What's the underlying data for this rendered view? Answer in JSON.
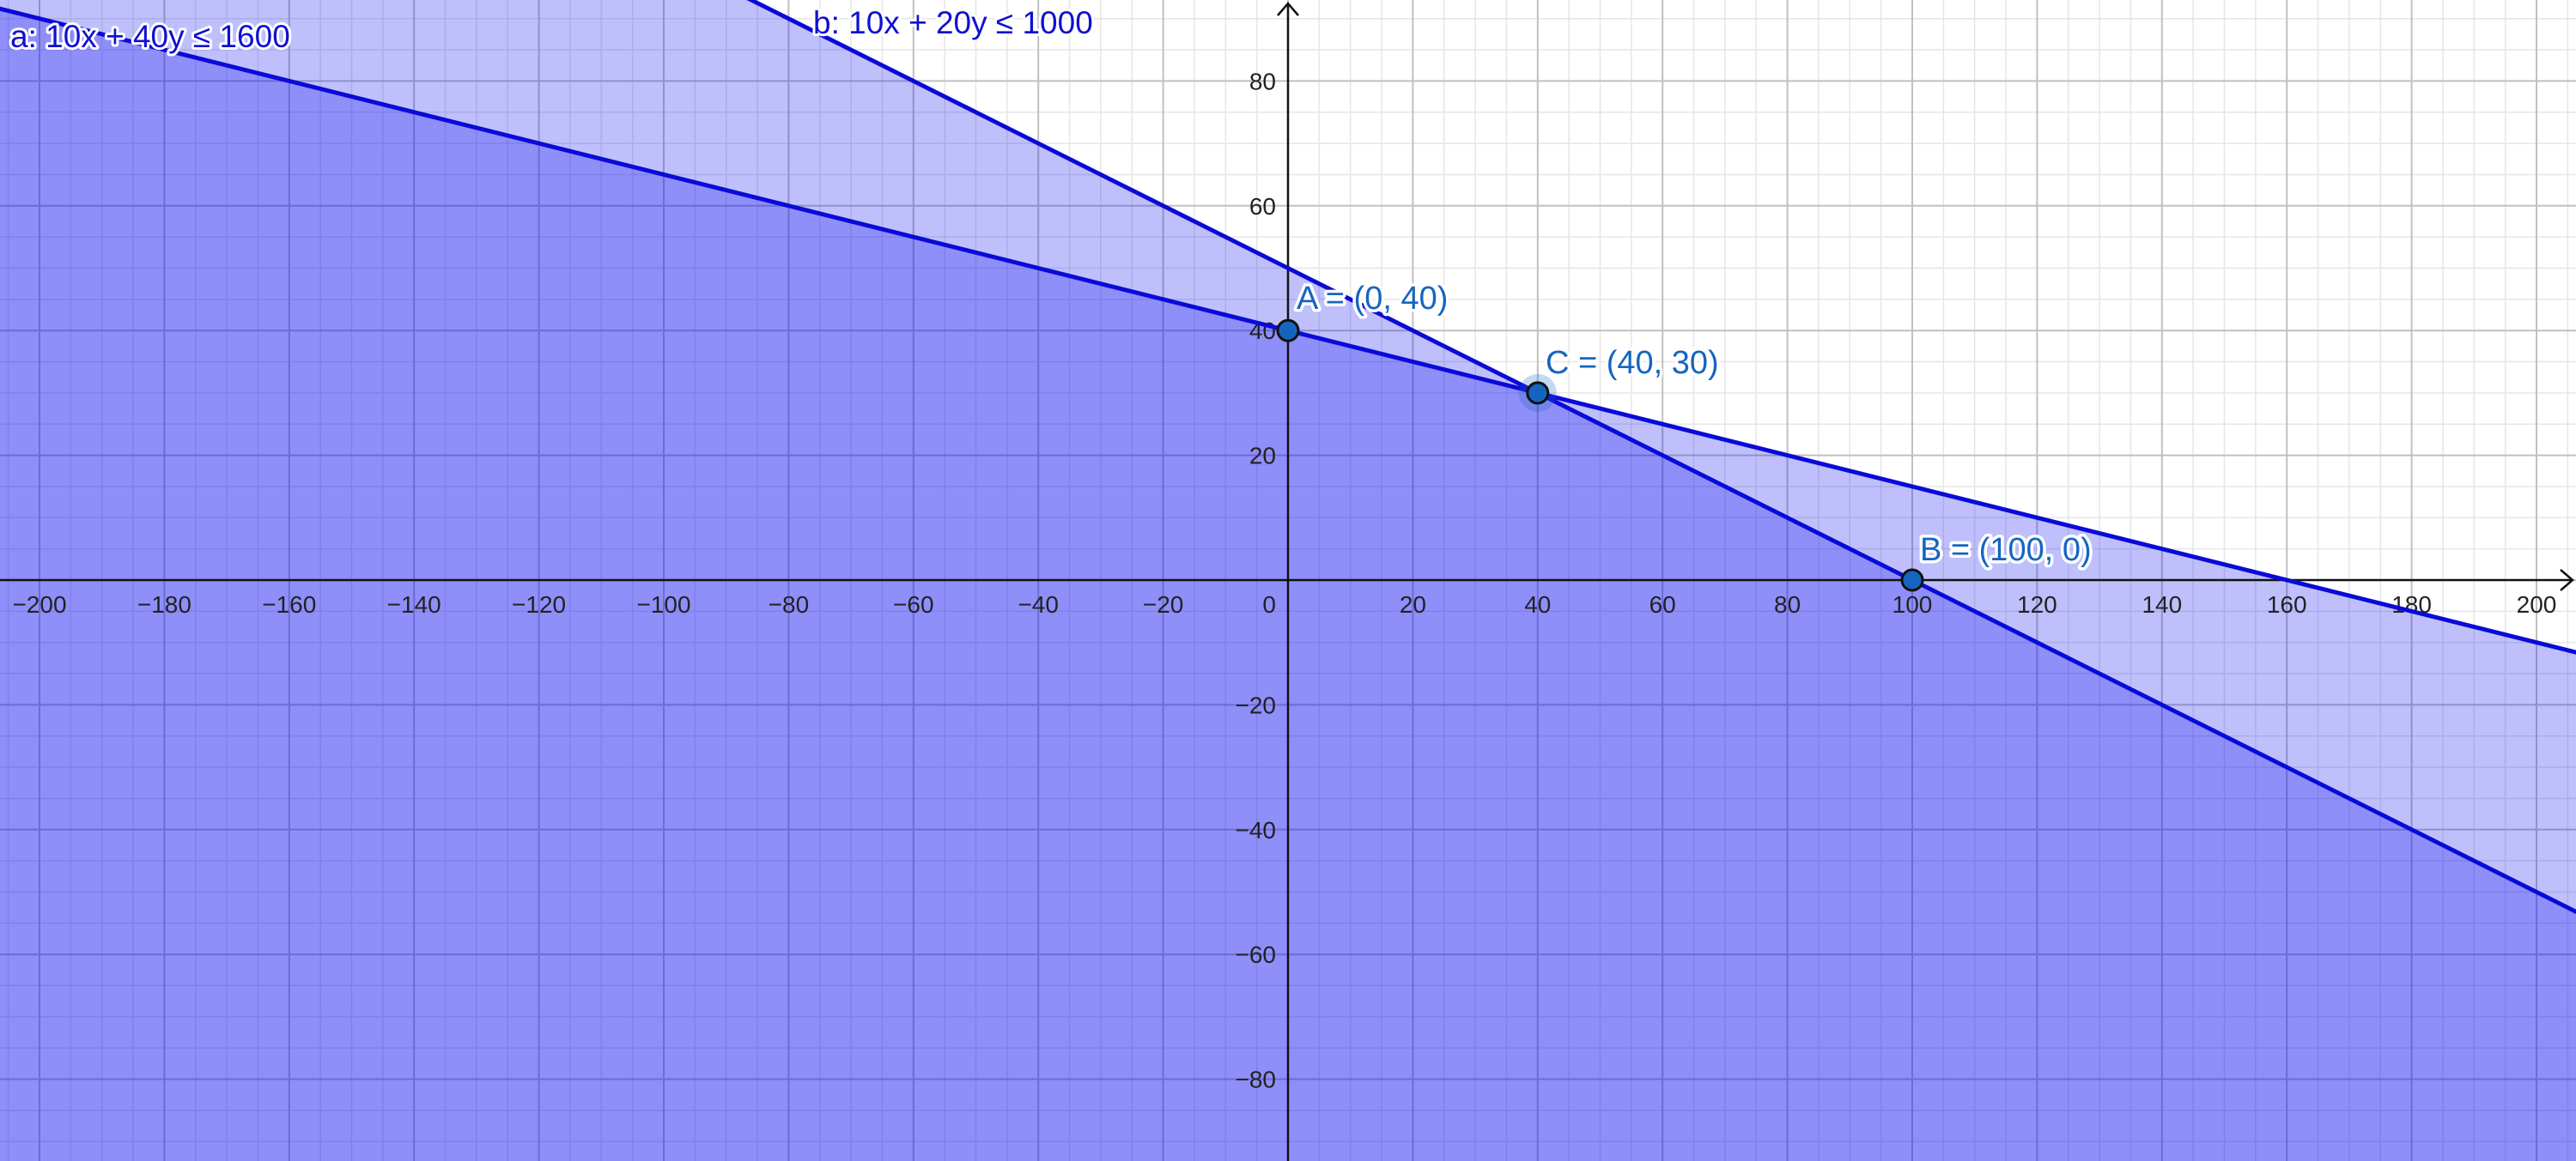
{
  "chart_data": {
    "type": "line",
    "title": "",
    "xlim": [
      -206,
      206
    ],
    "ylim": [
      -93,
      93
    ],
    "grid": true,
    "major_tick_step": 20,
    "minor_grid_step": 5,
    "x_ticks": [
      "−200",
      "−180",
      "−160",
      "−140",
      "−120",
      "−100",
      "−80",
      "−60",
      "−40",
      "−20",
      "0",
      "20",
      "40",
      "60",
      "80",
      "100",
      "120",
      "140",
      "160",
      "180",
      "200"
    ],
    "y_ticks": [
      "−80",
      "−60",
      "−40",
      "−20",
      "20",
      "40",
      "60",
      "80"
    ],
    "inequalities": [
      {
        "label": "a: 10x + 40y ≤ 1600",
        "a": 10,
        "b": 40,
        "c": 1600,
        "shaded": "below"
      },
      {
        "label": "b: 10x + 20y ≤ 1000",
        "a": 10,
        "b": 20,
        "c": 1000,
        "shaded": "below"
      }
    ],
    "points": [
      {
        "label": "A = (0, 40)",
        "x": 0,
        "y": 40
      },
      {
        "label": "C = (40, 30)",
        "x": 40,
        "y": 30,
        "highlighted": true
      },
      {
        "label": "B = (100, 0)",
        "x": 100,
        "y": 0
      }
    ],
    "colors": {
      "region_fill": "#0000f5",
      "boundary_line": "#0a0ad8",
      "point_fill": "#1565c0",
      "label_text": "#1565c0",
      "major_grid": "#c0c0c0",
      "minor_grid": "#e6e6e6",
      "axis": "#111111"
    }
  }
}
